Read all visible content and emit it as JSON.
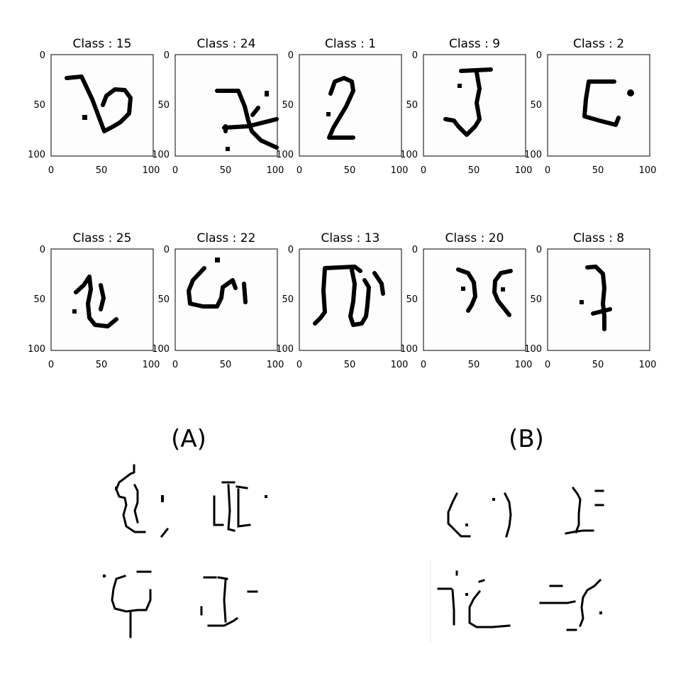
{
  "grid": {
    "axis_ticks": [
      "0",
      "50",
      "100"
    ],
    "panels": [
      {
        "title": "Class : 15"
      },
      {
        "title": "Class : 24"
      },
      {
        "title": "Class : 1"
      },
      {
        "title": "Class : 9"
      },
      {
        "title": "Class : 2"
      },
      {
        "title": "Class : 25"
      },
      {
        "title": "Class : 22"
      },
      {
        "title": "Class : 13"
      },
      {
        "title": "Class : 20"
      },
      {
        "title": "Class : 8"
      }
    ]
  },
  "bottom": {
    "label_a": "(A)",
    "label_b": "(B)"
  }
}
